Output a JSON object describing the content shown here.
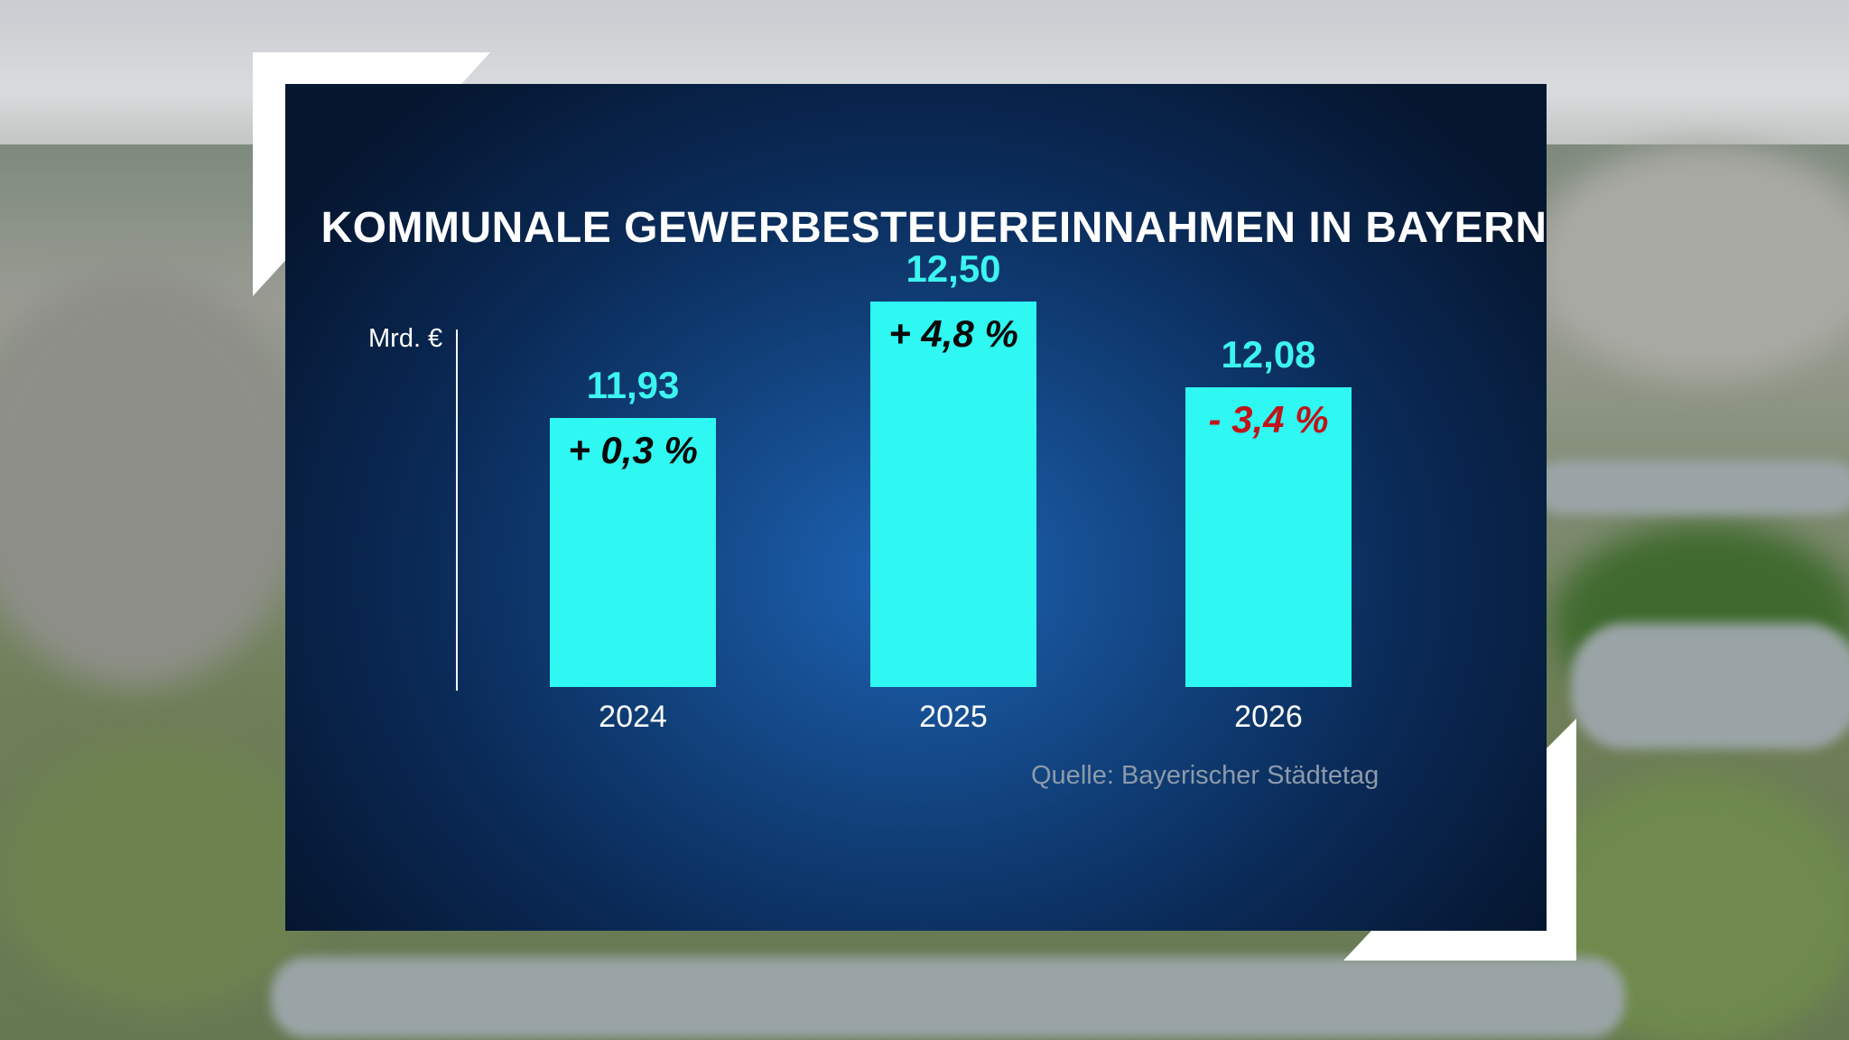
{
  "colors": {
    "bar": "#2ff7f1",
    "value_text": "#3cf4f0",
    "change_positive": "#0a0a0a",
    "change_negative": "#c0141a"
  },
  "chart_data": {
    "type": "bar",
    "title": "KOMMUNALE GEWERBESTEUEREINNAHMEN IN BAYERN",
    "ylabel": "Mrd. €",
    "categories": [
      "2024",
      "2025",
      "2026"
    ],
    "values": [
      11.93,
      12.5,
      12.08
    ],
    "value_labels": [
      "11,93",
      "12,50",
      "12,08"
    ],
    "change_labels": [
      "+ 0,3 %",
      "+ 4,8 %",
      "- 3,4 %"
    ],
    "change_values": [
      0.3,
      4.8,
      -3.4
    ],
    "source": "Quelle: Bayerischer Städtetag"
  }
}
